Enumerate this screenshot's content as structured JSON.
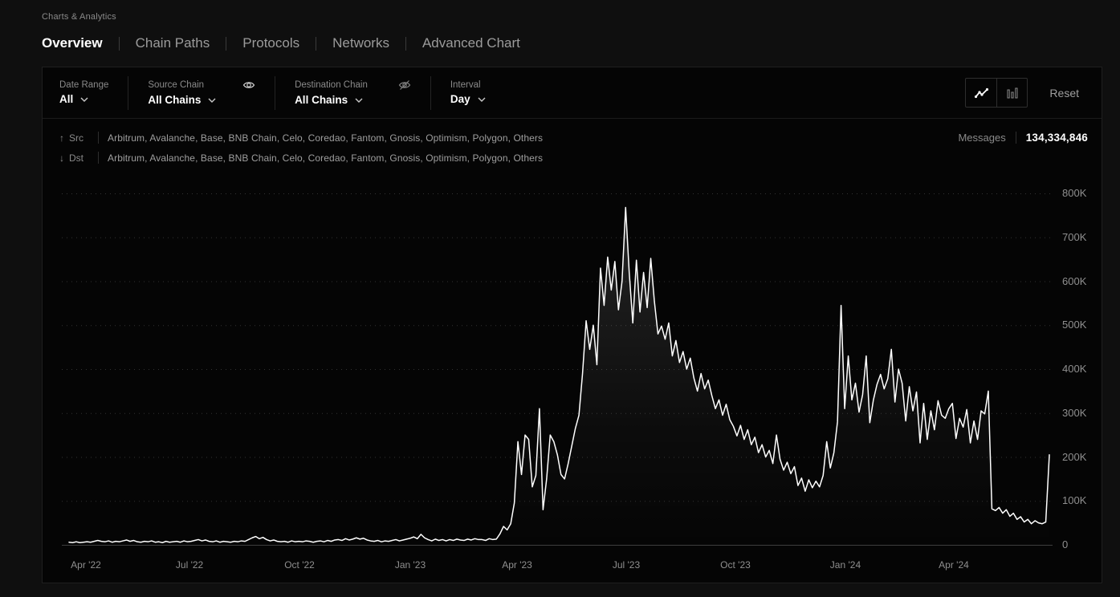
{
  "page": {
    "breadcrumb": "Charts & Analytics"
  },
  "tabs": [
    {
      "label": "Overview",
      "active": true
    },
    {
      "label": "Chain Paths",
      "active": false
    },
    {
      "label": "Protocols",
      "active": false
    },
    {
      "label": "Networks",
      "active": false
    },
    {
      "label": "Advanced Chart",
      "active": false
    }
  ],
  "filters": {
    "date_range": {
      "label": "Date Range",
      "value": "All"
    },
    "source_chain": {
      "label": "Source Chain",
      "value": "All Chains",
      "visibility_icon": "eye-icon"
    },
    "destination_chain": {
      "label": "Destination Chain",
      "value": "All Chains",
      "visibility_icon": "eye-off-icon"
    },
    "interval": {
      "label": "Interval",
      "value": "Day"
    },
    "chart_type_toggle": {
      "options": [
        "line",
        "bar"
      ],
      "selected": "line"
    },
    "reset_label": "Reset"
  },
  "summary": {
    "src": {
      "arrow": "↑",
      "label": "Src",
      "chains": [
        "Arbitrum",
        "Avalanche",
        "Base",
        "BNB Chain",
        "Celo",
        "Coredao",
        "Fantom",
        "Gnosis",
        "Optimism",
        "Polygon",
        "Others"
      ]
    },
    "dst": {
      "arrow": "↓",
      "label": "Dst",
      "chains": [
        "Arbitrum",
        "Avalanche",
        "Base",
        "BNB Chain",
        "Celo",
        "Coredao",
        "Fantom",
        "Gnosis",
        "Optimism",
        "Polygon",
        "Others"
      ]
    },
    "messages": {
      "label": "Messages",
      "value": "134,334,846"
    }
  },
  "colors": {
    "line": "#ffffff",
    "grid": "#333333",
    "zero_line": "#3d3d3d",
    "panel": "#050505",
    "background": "#0f0f0f",
    "text_dim": "#8f8f8f"
  },
  "chart_data": {
    "type": "area",
    "interval": "Day",
    "legend_position": "none",
    "grid": "horizontal-dotted",
    "y_unit": "K",
    "y_max_k": 800,
    "y_ticks": [
      {
        "label": "800K",
        "v": 800
      },
      {
        "label": "700K",
        "v": 700
      },
      {
        "label": "600K",
        "v": 600
      },
      {
        "label": "500K",
        "v": 500
      },
      {
        "label": "400K",
        "v": 400
      },
      {
        "label": "300K",
        "v": 300
      },
      {
        "label": "200K",
        "v": 200
      },
      {
        "label": "100K",
        "v": 100
      },
      {
        "label": "0",
        "v": 0
      }
    ],
    "x_ticks": [
      {
        "label": "Apr '22",
        "f": 0.0243
      },
      {
        "label": "Jul '22",
        "f": 0.1289
      },
      {
        "label": "Oct '22",
        "f": 0.2399
      },
      {
        "label": "Jan '23",
        "f": 0.3517
      },
      {
        "label": "Apr '23",
        "f": 0.4595
      },
      {
        "label": "Jul '23",
        "f": 0.5697
      },
      {
        "label": "Oct '23",
        "f": 0.6799
      },
      {
        "label": "Jan '24",
        "f": 0.7909
      },
      {
        "label": "Apr '24",
        "f": 0.9003
      }
    ],
    "values_k": [
      6,
      5,
      7,
      5,
      6,
      7,
      6,
      8,
      10,
      8,
      7,
      9,
      6,
      8,
      7,
      9,
      11,
      8,
      10,
      7,
      6,
      8,
      7,
      9,
      6,
      7,
      5,
      8,
      6,
      7,
      8,
      6,
      9,
      7,
      8,
      10,
      12,
      9,
      11,
      8,
      7,
      9,
      6,
      8,
      7,
      6,
      8,
      7,
      9,
      8,
      12,
      16,
      19,
      14,
      17,
      12,
      9,
      11,
      8,
      7,
      8,
      6,
      9,
      7,
      8,
      7,
      9,
      8,
      6,
      8,
      9,
      7,
      10,
      8,
      11,
      12,
      10,
      14,
      11,
      13,
      16,
      13,
      15,
      11,
      9,
      8,
      10,
      7,
      9,
      8,
      10,
      12,
      9,
      11,
      13,
      15,
      18,
      14,
      24,
      16,
      12,
      9,
      13,
      10,
      12,
      9,
      12,
      10,
      13,
      11,
      10,
      13,
      11,
      14,
      12,
      12,
      10,
      14,
      12,
      13,
      25,
      42,
      34,
      48,
      95,
      235,
      160,
      250,
      240,
      132,
      158,
      310,
      80,
      150,
      250,
      235,
      205,
      160,
      150,
      185,
      225,
      265,
      295,
      390,
      510,
      445,
      500,
      410,
      630,
      545,
      655,
      580,
      645,
      535,
      600,
      768,
      620,
      505,
      648,
      530,
      620,
      540,
      652,
      555,
      480,
      498,
      468,
      505,
      430,
      465,
      415,
      440,
      400,
      425,
      380,
      350,
      390,
      355,
      375,
      340,
      310,
      330,
      295,
      320,
      285,
      270,
      248,
      272,
      240,
      262,
      228,
      245,
      210,
      228,
      200,
      215,
      185,
      250,
      195,
      170,
      188,
      162,
      178,
      135,
      152,
      122,
      148,
      130,
      145,
      132,
      158,
      235,
      175,
      210,
      280,
      545,
      310,
      430,
      330,
      368,
      302,
      342,
      430,
      278,
      330,
      365,
      388,
      355,
      378,
      445,
      325,
      400,
      368,
      282,
      360,
      305,
      348,
      232,
      322,
      240,
      305,
      262,
      328,
      295,
      288,
      310,
      322,
      242,
      288,
      268,
      308,
      232,
      282,
      240,
      305,
      298,
      350,
      82,
      78,
      85,
      72,
      80,
      65,
      72,
      58,
      64,
      52,
      58,
      48,
      55,
      50,
      48,
      52,
      205
    ]
  }
}
